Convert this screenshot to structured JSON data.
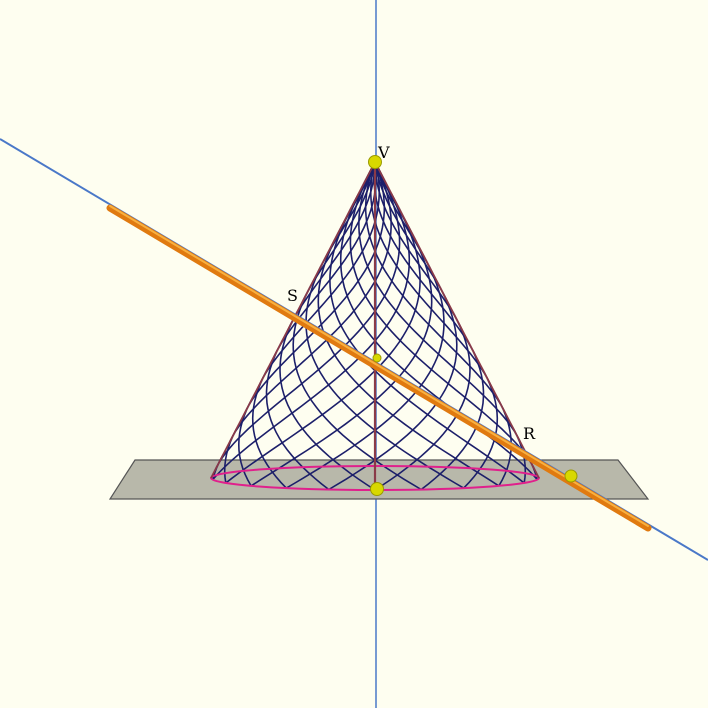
{
  "points": {
    "apex": {
      "label": "V"
    },
    "s": {
      "label": "S"
    },
    "r": {
      "label": "R"
    }
  },
  "colors": {
    "background": "#fefef0",
    "axis": "#4a78c8",
    "plane_fill": "#b8b8aa",
    "plane_stroke": "#555555",
    "cone_outline": "#8a3a48",
    "cone_mesh": "#1c1f6a",
    "base_circle": "#e0208c",
    "line": "#e07a10",
    "line_highlight": "#f8b040",
    "point": "#d8d800",
    "point_stroke": "#9a9a00"
  }
}
